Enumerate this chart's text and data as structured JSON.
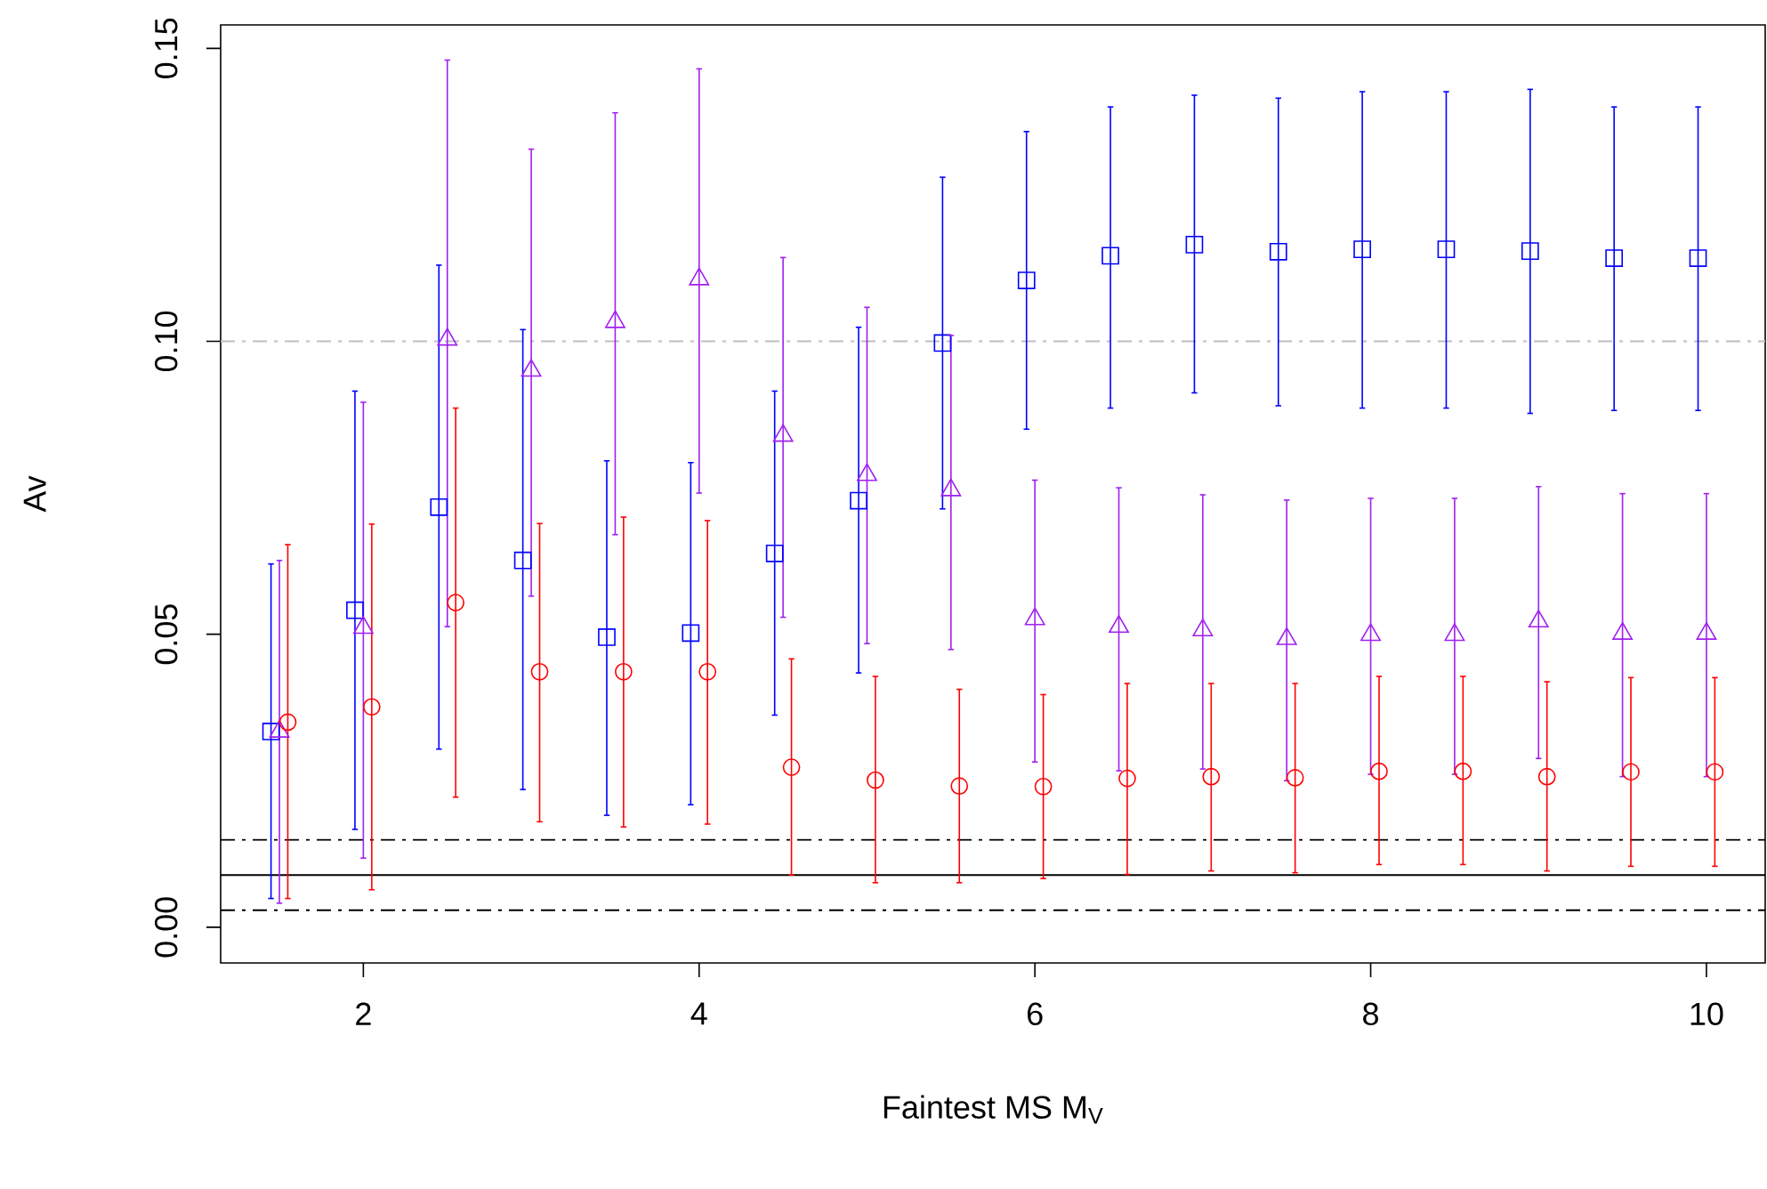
{
  "chart_data": {
    "type": "scatter",
    "xlabel": "Faintest MS M$_{V}$",
    "ylabel": "Av",
    "xlim": [
      1.15,
      10.35
    ],
    "ylim": [
      -0.0061,
      0.154
    ],
    "xticks": [
      2,
      4,
      6,
      8,
      10
    ],
    "yticks": [
      {
        "value": 0,
        "label": "0.00"
      },
      {
        "value": 0.05,
        "label": "0.05"
      },
      {
        "value": 0.1,
        "label": "0.10"
      },
      {
        "value": 0.15,
        "label": "0.15"
      }
    ],
    "series": [
      {
        "color": "#0000ff",
        "marker": "square",
        "x": [
          1.45,
          1.95,
          2.45,
          2.95,
          3.45,
          3.95,
          4.45,
          4.95,
          5.45,
          5.95,
          6.45,
          6.95,
          7.45,
          7.95,
          8.45,
          8.95,
          9.45,
          9.95
        ],
        "values": [
          0.0334,
          0.0541,
          0.0717,
          0.0626,
          0.0495,
          0.0502,
          0.0638,
          0.0728,
          0.0997,
          0.1104,
          0.1146,
          0.1165,
          0.1153,
          0.1157,
          0.1157,
          0.1154,
          0.1142,
          0.1142
        ],
        "errors": [
          [
            0.0049,
            0.062
          ],
          [
            0.0167,
            0.0915
          ],
          [
            0.0304,
            0.113
          ],
          [
            0.0235,
            0.102
          ],
          [
            0.0191,
            0.0796
          ],
          [
            0.0209,
            0.0793
          ],
          [
            0.0362,
            0.0915
          ],
          [
            0.0434,
            0.1024
          ],
          [
            0.0714,
            0.128
          ],
          [
            0.085,
            0.1358
          ],
          [
            0.0886,
            0.14
          ],
          [
            0.0912,
            0.142
          ],
          [
            0.089,
            0.1415
          ],
          [
            0.0886,
            0.1426
          ],
          [
            0.0886,
            0.1426
          ],
          [
            0.0877,
            0.143
          ],
          [
            0.0882,
            0.14
          ],
          [
            0.0882,
            0.14
          ]
        ]
      },
      {
        "color": "#a020f0",
        "marker": "triangle",
        "x": [
          1.5,
          2.0,
          2.5,
          3.0,
          3.5,
          4.0,
          4.5,
          5.0,
          5.5,
          6.0,
          6.5,
          7.0,
          7.5,
          8.0,
          8.5,
          9.0,
          9.5,
          10.0
        ],
        "values": [
          0.0334,
          0.0511,
          0.1003,
          0.095,
          0.1033,
          0.1106,
          0.0839,
          0.0772,
          0.0746,
          0.0526,
          0.0513,
          0.0507,
          0.0492,
          0.0499,
          0.0499,
          0.0522,
          0.0501,
          0.0501
        ],
        "errors": [
          [
            0.0041,
            0.0626
          ],
          [
            0.0118,
            0.0896
          ],
          [
            0.0513,
            0.148
          ],
          [
            0.0565,
            0.1328
          ],
          [
            0.067,
            0.139
          ],
          [
            0.0741,
            0.1465
          ],
          [
            0.0529,
            0.1143
          ],
          [
            0.0484,
            0.1058
          ],
          [
            0.0474,
            0.101
          ],
          [
            0.0282,
            0.0763
          ],
          [
            0.0267,
            0.075
          ],
          [
            0.027,
            0.0738
          ],
          [
            0.025,
            0.0729
          ],
          [
            0.0261,
            0.0732
          ],
          [
            0.0261,
            0.0732
          ],
          [
            0.0288,
            0.0752
          ],
          [
            0.0257,
            0.074
          ],
          [
            0.0257,
            0.074
          ]
        ]
      },
      {
        "color": "#ff0000",
        "marker": "circle",
        "x": [
          1.55,
          2.05,
          2.55,
          3.05,
          3.55,
          4.05,
          4.55,
          5.05,
          5.55,
          6.05,
          6.55,
          7.05,
          7.55,
          8.05,
          8.55,
          9.05,
          9.55,
          10.05
        ],
        "values": [
          0.035,
          0.0376,
          0.0554,
          0.0436,
          0.0436,
          0.0436,
          0.0273,
          0.0251,
          0.0241,
          0.024,
          0.0254,
          0.0257,
          0.0255,
          0.0266,
          0.0266,
          0.0257,
          0.0265,
          0.0265
        ],
        "errors": [
          [
            0.0049,
            0.0653
          ],
          [
            0.0064,
            0.0688
          ],
          [
            0.0222,
            0.0886
          ],
          [
            0.018,
            0.0689
          ],
          [
            0.0171,
            0.07
          ],
          [
            0.0176,
            0.0694
          ],
          [
            0.0089,
            0.0458
          ],
          [
            0.0076,
            0.0428
          ],
          [
            0.0076,
            0.0406
          ],
          [
            0.0083,
            0.0397
          ],
          [
            0.009,
            0.0416
          ],
          [
            0.0096,
            0.0416
          ],
          [
            0.0093,
            0.0416
          ],
          [
            0.0107,
            0.0428
          ],
          [
            0.0107,
            0.0428
          ],
          [
            0.0096,
            0.0419
          ],
          [
            0.0104,
            0.0426
          ],
          [
            0.0104,
            0.0426
          ]
        ]
      }
    ],
    "ref_lines": [
      {
        "axis": "y",
        "value": 0.1,
        "color": "#bebebe",
        "line_style": "dashdot"
      },
      {
        "axis": "y",
        "value": 0.0089,
        "color": "#000000",
        "line_style": "solid"
      },
      {
        "axis": "y",
        "value": 0.0149,
        "color": "#000000",
        "line_style": "dashdot"
      },
      {
        "axis": "y",
        "value": 0.0029,
        "color": "#000000",
        "line_style": "dashdot"
      }
    ]
  }
}
